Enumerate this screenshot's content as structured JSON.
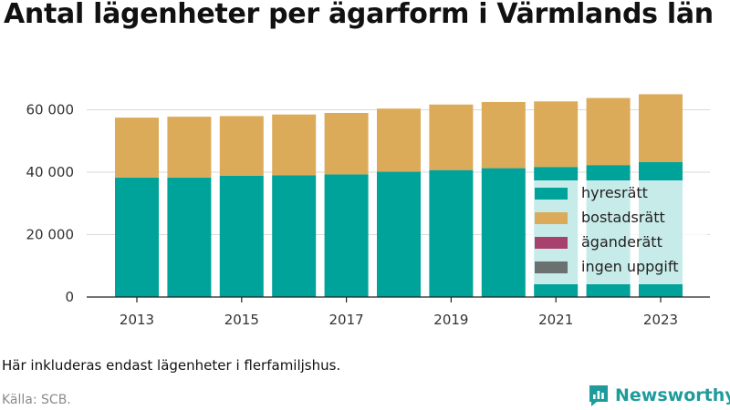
{
  "title": "Antal lägenheter per ägarform i Värmlands län",
  "note": "Här inkluderas endast lägenheter i flerfamiljshus.",
  "source": "Källa: SCB.",
  "brand": {
    "name": "Newsworthy",
    "color": "#1f9b9b",
    "icon": "newsworthy-logo-icon"
  },
  "chart_data": {
    "type": "bar",
    "stacked": true,
    "x": [
      2013,
      2014,
      2015,
      2016,
      2017,
      2018,
      2019,
      2020,
      2021,
      2022,
      2023
    ],
    "x_tick_labels": [
      "2013",
      "2015",
      "2017",
      "2019",
      "2021",
      "2023"
    ],
    "x_tick_values": [
      2013,
      2015,
      2017,
      2019,
      2021,
      2023
    ],
    "y_ticks": [
      0,
      20000,
      40000,
      60000
    ],
    "y_tick_labels": [
      "0",
      "20 000",
      "40 000",
      "60 000"
    ],
    "ylim": [
      0,
      66000
    ],
    "grid": "horizontal",
    "legend_position": "bottom-right",
    "series": [
      {
        "name": "hyresrätt",
        "color": "#00a39a",
        "values": [
          38300,
          38300,
          38900,
          39000,
          39300,
          40200,
          40700,
          41300,
          41700,
          42300,
          43300
        ]
      },
      {
        "name": "bostadsrätt",
        "color": "#dbab5a",
        "values": [
          19200,
          19500,
          19100,
          19500,
          19700,
          20200,
          21000,
          21200,
          21000,
          21500,
          21700
        ]
      },
      {
        "name": "äganderätt",
        "color": "#a8416b",
        "values": [
          0,
          0,
          0,
          0,
          0,
          0,
          0,
          0,
          0,
          0,
          0
        ]
      },
      {
        "name": "ingen uppgift",
        "color": "#6b7070",
        "values": [
          0,
          0,
          0,
          0,
          0,
          0,
          0,
          0,
          0,
          0,
          0
        ]
      }
    ]
  }
}
